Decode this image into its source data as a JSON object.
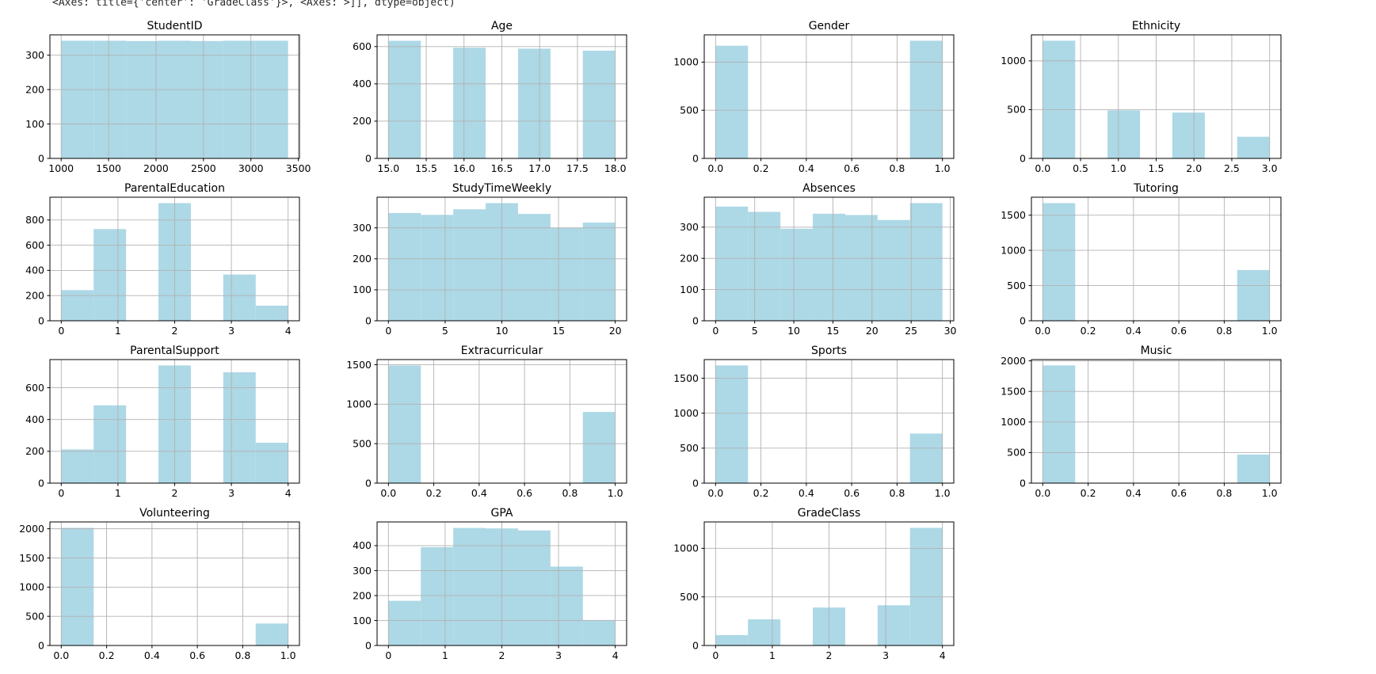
{
  "console_text": "<Axes: title={'center': 'GradeClass'}>, <Axes: >]], dtype=object)",
  "colors": {
    "bar_fill": "#add8e6",
    "grid": "#b2b2b2",
    "spine": "#000000",
    "tick_text": "#000000",
    "title_text": "#000000",
    "background": "#ffffff"
  },
  "chart_data": [
    {
      "type": "histogram",
      "title": "StudentID",
      "grid": true,
      "bin_edges": [
        1001,
        1342.57,
        1684.14,
        2025.71,
        2367.29,
        2708.86,
        3050.43,
        3392
      ],
      "counts": [
        342,
        342,
        341,
        342,
        341,
        342,
        342
      ],
      "xlim": [
        881.4,
        3511.6
      ],
      "ylim": [
        0,
        359
      ],
      "xticks": [
        {
          "v": 1000,
          "l": "1000"
        },
        {
          "v": 1500,
          "l": "1500"
        },
        {
          "v": 2000,
          "l": "2000"
        },
        {
          "v": 2500,
          "l": "2500"
        },
        {
          "v": 3000,
          "l": "3000"
        },
        {
          "v": 3500,
          "l": "3500"
        }
      ],
      "yticks": [
        {
          "v": 0,
          "l": "0"
        },
        {
          "v": 100,
          "l": "100"
        },
        {
          "v": 200,
          "l": "200"
        },
        {
          "v": 300,
          "l": "300"
        }
      ]
    },
    {
      "type": "histogram",
      "title": "Age",
      "grid": true,
      "bin_edges": [
        15,
        15.429,
        15.857,
        16.286,
        16.714,
        17.143,
        17.571,
        18
      ],
      "counts": [
        631,
        0,
        594,
        0,
        589,
        0,
        578
      ],
      "xlim": [
        14.85,
        18.15
      ],
      "ylim": [
        0,
        663
      ],
      "xticks": [
        {
          "v": 15.0,
          "l": "15.0"
        },
        {
          "v": 15.5,
          "l": "15.5"
        },
        {
          "v": 16.0,
          "l": "16.0"
        },
        {
          "v": 16.5,
          "l": "16.5"
        },
        {
          "v": 17.0,
          "l": "17.0"
        },
        {
          "v": 17.5,
          "l": "17.5"
        },
        {
          "v": 18.0,
          "l": "18.0"
        }
      ],
      "yticks": [
        {
          "v": 0,
          "l": "0"
        },
        {
          "v": 200,
          "l": "200"
        },
        {
          "v": 400,
          "l": "400"
        },
        {
          "v": 600,
          "l": "600"
        }
      ]
    },
    {
      "type": "histogram",
      "title": "Gender",
      "grid": true,
      "bin_edges": [
        0,
        0.143,
        0.286,
        0.429,
        0.571,
        0.714,
        0.857,
        1
      ],
      "counts": [
        1170,
        0,
        0,
        0,
        0,
        0,
        1222
      ],
      "xlim": [
        -0.05,
        1.05
      ],
      "ylim": [
        0,
        1283
      ],
      "xticks": [
        {
          "v": 0.0,
          "l": "0.0"
        },
        {
          "v": 0.2,
          "l": "0.2"
        },
        {
          "v": 0.4,
          "l": "0.4"
        },
        {
          "v": 0.6,
          "l": "0.6"
        },
        {
          "v": 0.8,
          "l": "0.8"
        },
        {
          "v": 1.0,
          "l": "1.0"
        }
      ],
      "yticks": [
        {
          "v": 0,
          "l": "0"
        },
        {
          "v": 500,
          "l": "500"
        },
        {
          "v": 1000,
          "l": "1000"
        }
      ]
    },
    {
      "type": "histogram",
      "title": "Ethnicity",
      "grid": true,
      "bin_edges": [
        0,
        0.429,
        0.857,
        1.286,
        1.714,
        2.143,
        2.571,
        3
      ],
      "counts": [
        1207,
        0,
        493,
        0,
        470,
        0,
        222
      ],
      "xlim": [
        -0.15,
        3.15
      ],
      "ylim": [
        0,
        1267
      ],
      "xticks": [
        {
          "v": 0.0,
          "l": "0.0"
        },
        {
          "v": 0.5,
          "l": "0.5"
        },
        {
          "v": 1.0,
          "l": "1.0"
        },
        {
          "v": 1.5,
          "l": "1.5"
        },
        {
          "v": 2.0,
          "l": "2.0"
        },
        {
          "v": 2.5,
          "l": "2.5"
        },
        {
          "v": 3.0,
          "l": "3.0"
        }
      ],
      "yticks": [
        {
          "v": 0,
          "l": "0"
        },
        {
          "v": 500,
          "l": "500"
        },
        {
          "v": 1000,
          "l": "1000"
        }
      ]
    },
    {
      "type": "histogram",
      "title": "ParentalEducation",
      "grid": true,
      "bin_edges": [
        0,
        0.571,
        1.143,
        1.714,
        2.286,
        2.857,
        3.429,
        4
      ],
      "counts": [
        243,
        728,
        0,
        934,
        0,
        367,
        120
      ],
      "xlim": [
        -0.2,
        4.2
      ],
      "ylim": [
        0,
        981
      ],
      "xticks": [
        {
          "v": 0,
          "l": "0"
        },
        {
          "v": 1,
          "l": "1"
        },
        {
          "v": 2,
          "l": "2"
        },
        {
          "v": 3,
          "l": "3"
        },
        {
          "v": 4,
          "l": "4"
        }
      ],
      "yticks": [
        {
          "v": 0,
          "l": "0"
        },
        {
          "v": 200,
          "l": "200"
        },
        {
          "v": 400,
          "l": "400"
        },
        {
          "v": 600,
          "l": "600"
        },
        {
          "v": 800,
          "l": "800"
        }
      ]
    },
    {
      "type": "histogram",
      "title": "StudyTimeWeekly",
      "grid": true,
      "bin_edges": [
        0,
        2.857,
        5.714,
        8.571,
        11.429,
        14.286,
        17.143,
        20
      ],
      "counts": [
        348,
        342,
        360,
        380,
        345,
        300,
        317
      ],
      "xlim": [
        -1.0,
        21.0
      ],
      "ylim": [
        0,
        399
      ],
      "xticks": [
        {
          "v": 0,
          "l": "0"
        },
        {
          "v": 5,
          "l": "5"
        },
        {
          "v": 10,
          "l": "10"
        },
        {
          "v": 15,
          "l": "15"
        },
        {
          "v": 20,
          "l": "20"
        }
      ],
      "yticks": [
        {
          "v": 0,
          "l": "0"
        },
        {
          "v": 100,
          "l": "100"
        },
        {
          "v": 200,
          "l": "200"
        },
        {
          "v": 300,
          "l": "300"
        }
      ]
    },
    {
      "type": "histogram",
      "title": "Absences",
      "grid": true,
      "bin_edges": [
        0,
        4.143,
        8.286,
        12.429,
        16.571,
        20.714,
        24.857,
        29
      ],
      "counts": [
        366,
        349,
        295,
        343,
        339,
        323,
        377
      ],
      "xlim": [
        -1.45,
        30.45
      ],
      "ylim": [
        0,
        396
      ],
      "xticks": [
        {
          "v": 0,
          "l": "0"
        },
        {
          "v": 5,
          "l": "5"
        },
        {
          "v": 10,
          "l": "10"
        },
        {
          "v": 15,
          "l": "15"
        },
        {
          "v": 20,
          "l": "20"
        },
        {
          "v": 25,
          "l": "25"
        },
        {
          "v": 30,
          "l": "30"
        }
      ],
      "yticks": [
        {
          "v": 0,
          "l": "0"
        },
        {
          "v": 100,
          "l": "100"
        },
        {
          "v": 200,
          "l": "200"
        },
        {
          "v": 300,
          "l": "300"
        }
      ]
    },
    {
      "type": "histogram",
      "title": "Tutoring",
      "grid": true,
      "bin_edges": [
        0,
        0.143,
        0.286,
        0.429,
        0.571,
        0.714,
        0.857,
        1
      ],
      "counts": [
        1671,
        0,
        0,
        0,
        0,
        0,
        721
      ],
      "xlim": [
        -0.05,
        1.05
      ],
      "ylim": [
        0,
        1755
      ],
      "xticks": [
        {
          "v": 0.0,
          "l": "0.0"
        },
        {
          "v": 0.2,
          "l": "0.2"
        },
        {
          "v": 0.4,
          "l": "0.4"
        },
        {
          "v": 0.6,
          "l": "0.6"
        },
        {
          "v": 0.8,
          "l": "0.8"
        },
        {
          "v": 1.0,
          "l": "1.0"
        }
      ],
      "yticks": [
        {
          "v": 0,
          "l": "0"
        },
        {
          "v": 500,
          "l": "500"
        },
        {
          "v": 1000,
          "l": "1000"
        },
        {
          "v": 1500,
          "l": "1500"
        }
      ]
    },
    {
      "type": "histogram",
      "title": "ParentalSupport",
      "grid": true,
      "bin_edges": [
        0,
        0.571,
        1.143,
        1.714,
        2.286,
        2.857,
        3.429,
        4
      ],
      "counts": [
        212,
        489,
        0,
        740,
        0,
        697,
        254
      ],
      "xlim": [
        -0.2,
        4.2
      ],
      "ylim": [
        0,
        777
      ],
      "xticks": [
        {
          "v": 0,
          "l": "0"
        },
        {
          "v": 1,
          "l": "1"
        },
        {
          "v": 2,
          "l": "2"
        },
        {
          "v": 3,
          "l": "3"
        },
        {
          "v": 4,
          "l": "4"
        }
      ],
      "yticks": [
        {
          "v": 0,
          "l": "0"
        },
        {
          "v": 200,
          "l": "200"
        },
        {
          "v": 400,
          "l": "400"
        },
        {
          "v": 600,
          "l": "600"
        }
      ]
    },
    {
      "type": "histogram",
      "title": "Extracurricular",
      "grid": true,
      "bin_edges": [
        0,
        0.143,
        0.286,
        0.429,
        0.571,
        0.714,
        0.857,
        1
      ],
      "counts": [
        1490,
        0,
        0,
        0,
        0,
        0,
        902
      ],
      "xlim": [
        -0.05,
        1.05
      ],
      "ylim": [
        0,
        1565
      ],
      "xticks": [
        {
          "v": 0.0,
          "l": "0.0"
        },
        {
          "v": 0.2,
          "l": "0.2"
        },
        {
          "v": 0.4,
          "l": "0.4"
        },
        {
          "v": 0.6,
          "l": "0.6"
        },
        {
          "v": 0.8,
          "l": "0.8"
        },
        {
          "v": 1.0,
          "l": "1.0"
        }
      ],
      "yticks": [
        {
          "v": 0,
          "l": "0"
        },
        {
          "v": 500,
          "l": "500"
        },
        {
          "v": 1000,
          "l": "1000"
        },
        {
          "v": 1500,
          "l": "1500"
        }
      ]
    },
    {
      "type": "histogram",
      "title": "Sports",
      "grid": true,
      "bin_edges": [
        0,
        0.143,
        0.286,
        0.429,
        0.571,
        0.714,
        0.857,
        1
      ],
      "counts": [
        1683,
        0,
        0,
        0,
        0,
        0,
        709
      ],
      "xlim": [
        -0.05,
        1.05
      ],
      "ylim": [
        0,
        1767
      ],
      "xticks": [
        {
          "v": 0.0,
          "l": "0.0"
        },
        {
          "v": 0.2,
          "l": "0.2"
        },
        {
          "v": 0.4,
          "l": "0.4"
        },
        {
          "v": 0.6,
          "l": "0.6"
        },
        {
          "v": 0.8,
          "l": "0.8"
        },
        {
          "v": 1.0,
          "l": "1.0"
        }
      ],
      "yticks": [
        {
          "v": 0,
          "l": "0"
        },
        {
          "v": 500,
          "l": "500"
        },
        {
          "v": 1000,
          "l": "1000"
        },
        {
          "v": 1500,
          "l": "1500"
        }
      ]
    },
    {
      "type": "histogram",
      "title": "Music",
      "grid": true,
      "bin_edges": [
        0,
        0.143,
        0.286,
        0.429,
        0.571,
        0.714,
        0.857,
        1
      ],
      "counts": [
        1925,
        0,
        0,
        0,
        0,
        0,
        467
      ],
      "xlim": [
        -0.05,
        1.05
      ],
      "ylim": [
        0,
        2021
      ],
      "xticks": [
        {
          "v": 0.0,
          "l": "0.0"
        },
        {
          "v": 0.2,
          "l": "0.2"
        },
        {
          "v": 0.4,
          "l": "0.4"
        },
        {
          "v": 0.6,
          "l": "0.6"
        },
        {
          "v": 0.8,
          "l": "0.8"
        },
        {
          "v": 1.0,
          "l": "1.0"
        }
      ],
      "yticks": [
        {
          "v": 0,
          "l": "0"
        },
        {
          "v": 500,
          "l": "500"
        },
        {
          "v": 1000,
          "l": "1000"
        },
        {
          "v": 1500,
          "l": "1500"
        },
        {
          "v": 2000,
          "l": "2000"
        }
      ]
    },
    {
      "type": "histogram",
      "title": "Volunteering",
      "grid": true,
      "bin_edges": [
        0,
        0.143,
        0.286,
        0.429,
        0.571,
        0.714,
        0.857,
        1
      ],
      "counts": [
        2016,
        0,
        0,
        0,
        0,
        0,
        376
      ],
      "xlim": [
        -0.05,
        1.05
      ],
      "ylim": [
        0,
        2117
      ],
      "xticks": [
        {
          "v": 0.0,
          "l": "0.0"
        },
        {
          "v": 0.2,
          "l": "0.2"
        },
        {
          "v": 0.4,
          "l": "0.4"
        },
        {
          "v": 0.6,
          "l": "0.6"
        },
        {
          "v": 0.8,
          "l": "0.8"
        },
        {
          "v": 1.0,
          "l": "1.0"
        }
      ],
      "yticks": [
        {
          "v": 0,
          "l": "0"
        },
        {
          "v": 500,
          "l": "500"
        },
        {
          "v": 1000,
          "l": "1000"
        },
        {
          "v": 1500,
          "l": "1500"
        },
        {
          "v": 2000,
          "l": "2000"
        }
      ]
    },
    {
      "type": "histogram",
      "title": "GPA",
      "grid": true,
      "bin_edges": [
        0,
        0.571,
        1.143,
        1.714,
        2.286,
        2.857,
        3.429,
        4
      ],
      "counts": [
        179,
        394,
        471,
        469,
        461,
        316,
        102
      ],
      "xlim": [
        -0.2,
        4.2
      ],
      "ylim": [
        0,
        495
      ],
      "xticks": [
        {
          "v": 0,
          "l": "0"
        },
        {
          "v": 1,
          "l": "1"
        },
        {
          "v": 2,
          "l": "2"
        },
        {
          "v": 3,
          "l": "3"
        },
        {
          "v": 4,
          "l": "4"
        }
      ],
      "yticks": [
        {
          "v": 0,
          "l": "0"
        },
        {
          "v": 100,
          "l": "100"
        },
        {
          "v": 200,
          "l": "200"
        },
        {
          "v": 300,
          "l": "300"
        },
        {
          "v": 400,
          "l": "400"
        }
      ]
    },
    {
      "type": "histogram",
      "title": "GradeClass",
      "grid": true,
      "bin_edges": [
        0,
        0.571,
        1.143,
        1.714,
        2.286,
        2.857,
        3.429,
        4
      ],
      "counts": [
        107,
        269,
        0,
        391,
        0,
        414,
        1211
      ],
      "xlim": [
        -0.2,
        4.2
      ],
      "ylim": [
        0,
        1272
      ],
      "xticks": [
        {
          "v": 0,
          "l": "0"
        },
        {
          "v": 1,
          "l": "1"
        },
        {
          "v": 2,
          "l": "2"
        },
        {
          "v": 3,
          "l": "3"
        },
        {
          "v": 4,
          "l": "4"
        }
      ],
      "yticks": [
        {
          "v": 0,
          "l": "0"
        },
        {
          "v": 500,
          "l": "500"
        },
        {
          "v": 1000,
          "l": "1000"
        }
      ]
    }
  ]
}
